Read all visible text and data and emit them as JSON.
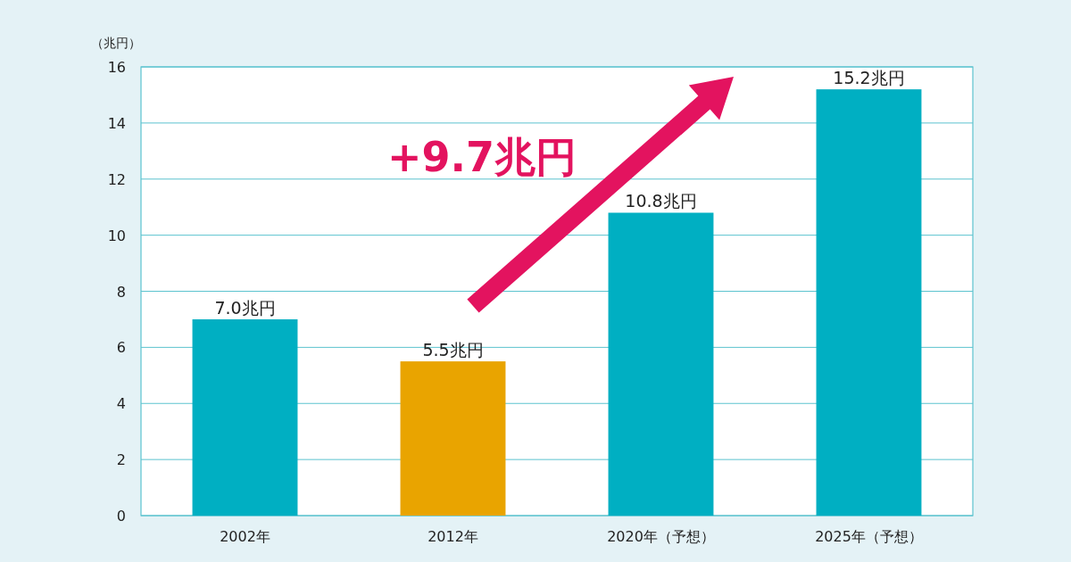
{
  "chart_data": {
    "type": "bar",
    "ylabel": "（兆円）",
    "categories": [
      "2002年",
      "2012年",
      "2020年（予想）",
      "2025年（予想）"
    ],
    "values": [
      7.0,
      5.5,
      10.8,
      15.2
    ],
    "colors": [
      "#00afc2",
      "#e9a400",
      "#00afc2",
      "#00afc2"
    ],
    "value_labels": [
      "7.0兆円",
      "5.5兆円",
      "10.8兆円",
      "15.2兆円"
    ],
    "ylim": [
      0,
      16
    ],
    "yticks": [
      0,
      2,
      4,
      6,
      8,
      10,
      12,
      14,
      16
    ],
    "grid": "y",
    "annotations": [
      "+9.7兆円"
    ]
  }
}
